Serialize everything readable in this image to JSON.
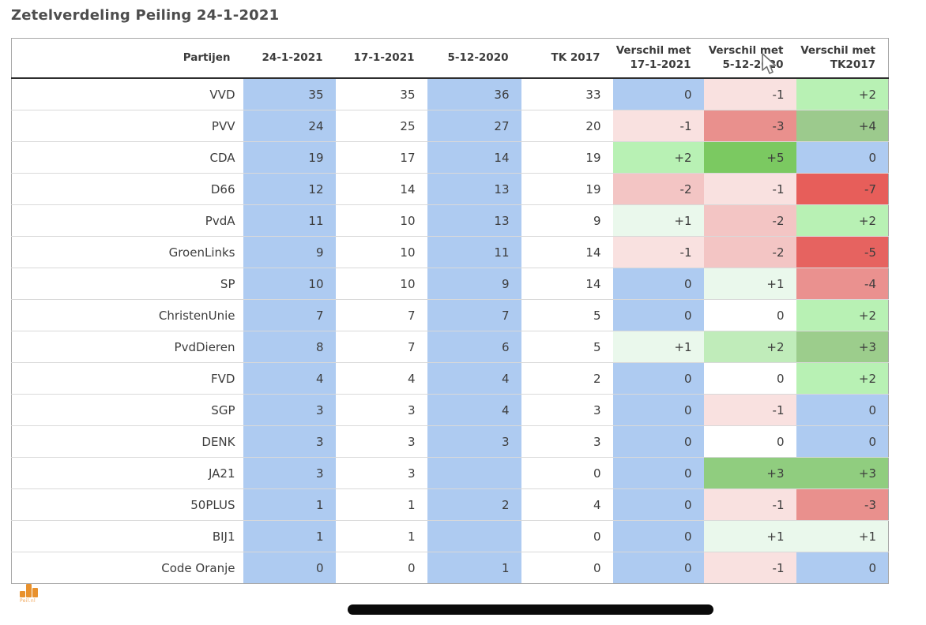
{
  "title": "Zetelverdeling Peiling 24-1-2021",
  "chart_data": {
    "type": "table",
    "title": "Zetelverdeling Peiling 24-1-2021",
    "columns": [
      "Partijen",
      "24-1-2021",
      "17-1-2021",
      "5-12-2020",
      "TK 2017",
      "Verschil met 17-1-2021",
      "Verschil met 5-12-2020",
      "Verschil met TK2017"
    ],
    "rows": [
      {
        "party": "VVD",
        "seats": [
          "35",
          "35",
          "36",
          "33"
        ],
        "diffs": [
          {
            "v": "0",
            "bg": "#aecbf1"
          },
          {
            "v": "-1",
            "bg": "#f9e1e0"
          },
          {
            "v": "+2",
            "bg": "#b8f1b4"
          }
        ]
      },
      {
        "party": "PVV",
        "seats": [
          "24",
          "25",
          "27",
          "20"
        ],
        "diffs": [
          {
            "v": "-1",
            "bg": "#f9e1e0"
          },
          {
            "v": "-3",
            "bg": "#e9908d"
          },
          {
            "v": "+4",
            "bg": "#9cca8d"
          }
        ]
      },
      {
        "party": "CDA",
        "seats": [
          "19",
          "17",
          "14",
          "19"
        ],
        "diffs": [
          {
            "v": "+2",
            "bg": "#b8f1b4"
          },
          {
            "v": "+5",
            "bg": "#7bc961"
          },
          {
            "v": "0",
            "bg": "#aecbf1"
          }
        ]
      },
      {
        "party": "D66",
        "seats": [
          "12",
          "14",
          "13",
          "19"
        ],
        "diffs": [
          {
            "v": "-2",
            "bg": "#f3c5c4"
          },
          {
            "v": "-1",
            "bg": "#f9e1e0"
          },
          {
            "v": "-7",
            "bg": "#e75e5a"
          }
        ]
      },
      {
        "party": "PvdA",
        "seats": [
          "11",
          "10",
          "13",
          "9"
        ],
        "diffs": [
          {
            "v": "+1",
            "bg": "#eaf8ec"
          },
          {
            "v": "-2",
            "bg": "#f3c5c4"
          },
          {
            "v": "+2",
            "bg": "#b8f1b4"
          }
        ]
      },
      {
        "party": "GroenLinks",
        "seats": [
          "9",
          "10",
          "11",
          "14"
        ],
        "diffs": [
          {
            "v": "-1",
            "bg": "#f9e1e0"
          },
          {
            "v": "-2",
            "bg": "#f3c5c4"
          },
          {
            "v": "-5",
            "bg": "#e66360"
          }
        ]
      },
      {
        "party": "SP",
        "seats": [
          "10",
          "10",
          "9",
          "14"
        ],
        "diffs": [
          {
            "v": "0",
            "bg": "#aecbf1"
          },
          {
            "v": "+1",
            "bg": "#eaf8ec"
          },
          {
            "v": "-4",
            "bg": "#ea918f"
          }
        ]
      },
      {
        "party": "ChristenUnie",
        "seats": [
          "7",
          "7",
          "7",
          "5"
        ],
        "diffs": [
          {
            "v": "0",
            "bg": "#aecbf1"
          },
          {
            "v": "0",
            "bg": "#ffffff"
          },
          {
            "v": "+2",
            "bg": "#b8f1b4"
          }
        ]
      },
      {
        "party": "PvdDieren",
        "seats": [
          "8",
          "7",
          "6",
          "5"
        ],
        "diffs": [
          {
            "v": "+1",
            "bg": "#eaf8ec"
          },
          {
            "v": "+2",
            "bg": "#c0ecba"
          },
          {
            "v": "+3",
            "bg": "#9ccd8c"
          }
        ]
      },
      {
        "party": "FVD",
        "seats": [
          "4",
          "4",
          "4",
          "2"
        ],
        "diffs": [
          {
            "v": "0",
            "bg": "#aecbf1"
          },
          {
            "v": "0",
            "bg": "#ffffff"
          },
          {
            "v": "+2",
            "bg": "#b8f1b4"
          }
        ]
      },
      {
        "party": "SGP",
        "seats": [
          "3",
          "3",
          "4",
          "3"
        ],
        "diffs": [
          {
            "v": "0",
            "bg": "#aecbf1"
          },
          {
            "v": "-1",
            "bg": "#f9e1e0"
          },
          {
            "v": "0",
            "bg": "#aecbf1"
          }
        ]
      },
      {
        "party": "DENK",
        "seats": [
          "3",
          "3",
          "3",
          "3"
        ],
        "diffs": [
          {
            "v": "0",
            "bg": "#aecbf1"
          },
          {
            "v": "0",
            "bg": "#ffffff"
          },
          {
            "v": "0",
            "bg": "#aecbf1"
          }
        ]
      },
      {
        "party": "JA21",
        "seats": [
          "3",
          "3",
          "",
          "0"
        ],
        "diffs": [
          {
            "v": "0",
            "bg": "#aecbf1"
          },
          {
            "v": "+3",
            "bg": "#90cd7f"
          },
          {
            "v": "+3",
            "bg": "#90cd7f"
          }
        ]
      },
      {
        "party": "50PLUS",
        "seats": [
          "1",
          "1",
          "2",
          "4"
        ],
        "diffs": [
          {
            "v": "0",
            "bg": "#aecbf1"
          },
          {
            "v": "-1",
            "bg": "#f9e1e0"
          },
          {
            "v": "-3",
            "bg": "#e9908d"
          }
        ]
      },
      {
        "party": "BIJ1",
        "seats": [
          "1",
          "1",
          "",
          "0"
        ],
        "diffs": [
          {
            "v": "0",
            "bg": "#aecbf1"
          },
          {
            "v": "+1",
            "bg": "#eaf8ec"
          },
          {
            "v": "+1",
            "bg": "#eaf8ec"
          }
        ]
      },
      {
        "party": "Code Oranje",
        "seats": [
          "0",
          "0",
          "1",
          "0"
        ],
        "diffs": [
          {
            "v": "0",
            "bg": "#aecbf1"
          },
          {
            "v": "-1",
            "bg": "#f9e1e0"
          },
          {
            "v": "0",
            "bg": "#aecbf1"
          }
        ]
      }
    ],
    "layout": {
      "highlighted_columns": [
        "24-1-2021",
        "5-12-2020"
      ],
      "diff_color_coding": "blue = no change, green shades = gain, red shades = loss"
    }
  },
  "colors": {
    "column_highlight_blue": "#aecbf1",
    "diff_positive_strong": "#7bc961",
    "diff_negative_strong": "#e75e5a",
    "logo_orange": "#e8912d",
    "title_text": "#4d4d4d"
  },
  "footer": {
    "logo_text": "Peil.nl"
  }
}
